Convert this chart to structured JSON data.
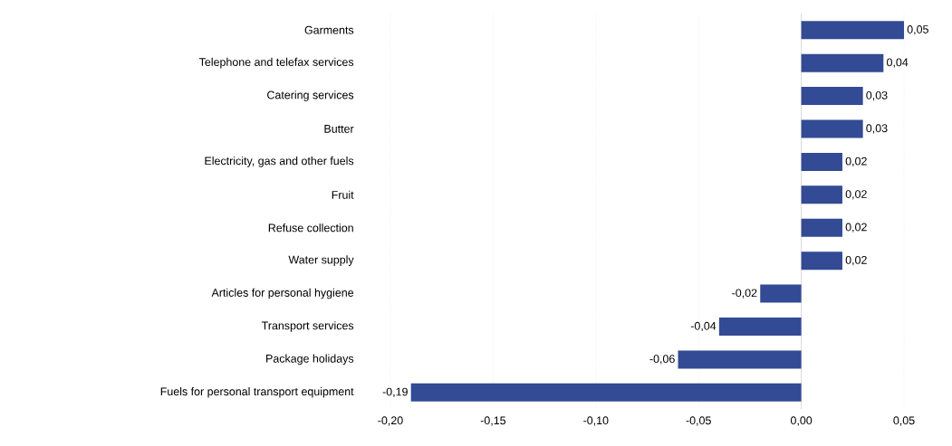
{
  "chart_data": {
    "type": "bar",
    "orientation": "horizontal",
    "categories": [
      "Garments",
      "Telephone and telefax services",
      "Catering services",
      "Butter",
      "Electricity, gas and other fuels",
      "Fruit",
      "Refuse collection",
      "Water supply",
      "Articles for personal hygiene",
      "Transport services",
      "Package holidays",
      "Fuels for personal transport equipment"
    ],
    "values": [
      0.05,
      0.04,
      0.03,
      0.03,
      0.02,
      0.02,
      0.02,
      0.02,
      -0.02,
      -0.04,
      -0.06,
      -0.19
    ],
    "value_labels": [
      "0,05",
      "0,04",
      "0,03",
      "0,03",
      "0,02",
      "0,02",
      "0,02",
      "0,02",
      "-0,02",
      "-0,04",
      "-0,06",
      "-0,19"
    ],
    "color": "#334a94",
    "xlim": [
      -0.2,
      0.05
    ],
    "xticks": [
      {
        "value": -0.2,
        "label": "-0,20"
      },
      {
        "value": -0.15,
        "label": "-0,15"
      },
      {
        "value": -0.1,
        "label": "-0,10"
      },
      {
        "value": -0.05,
        "label": "-0,05"
      },
      {
        "value": 0,
        "label": "0,00"
      },
      {
        "value": 0.05,
        "label": "0,05"
      }
    ],
    "grid": "x"
  }
}
